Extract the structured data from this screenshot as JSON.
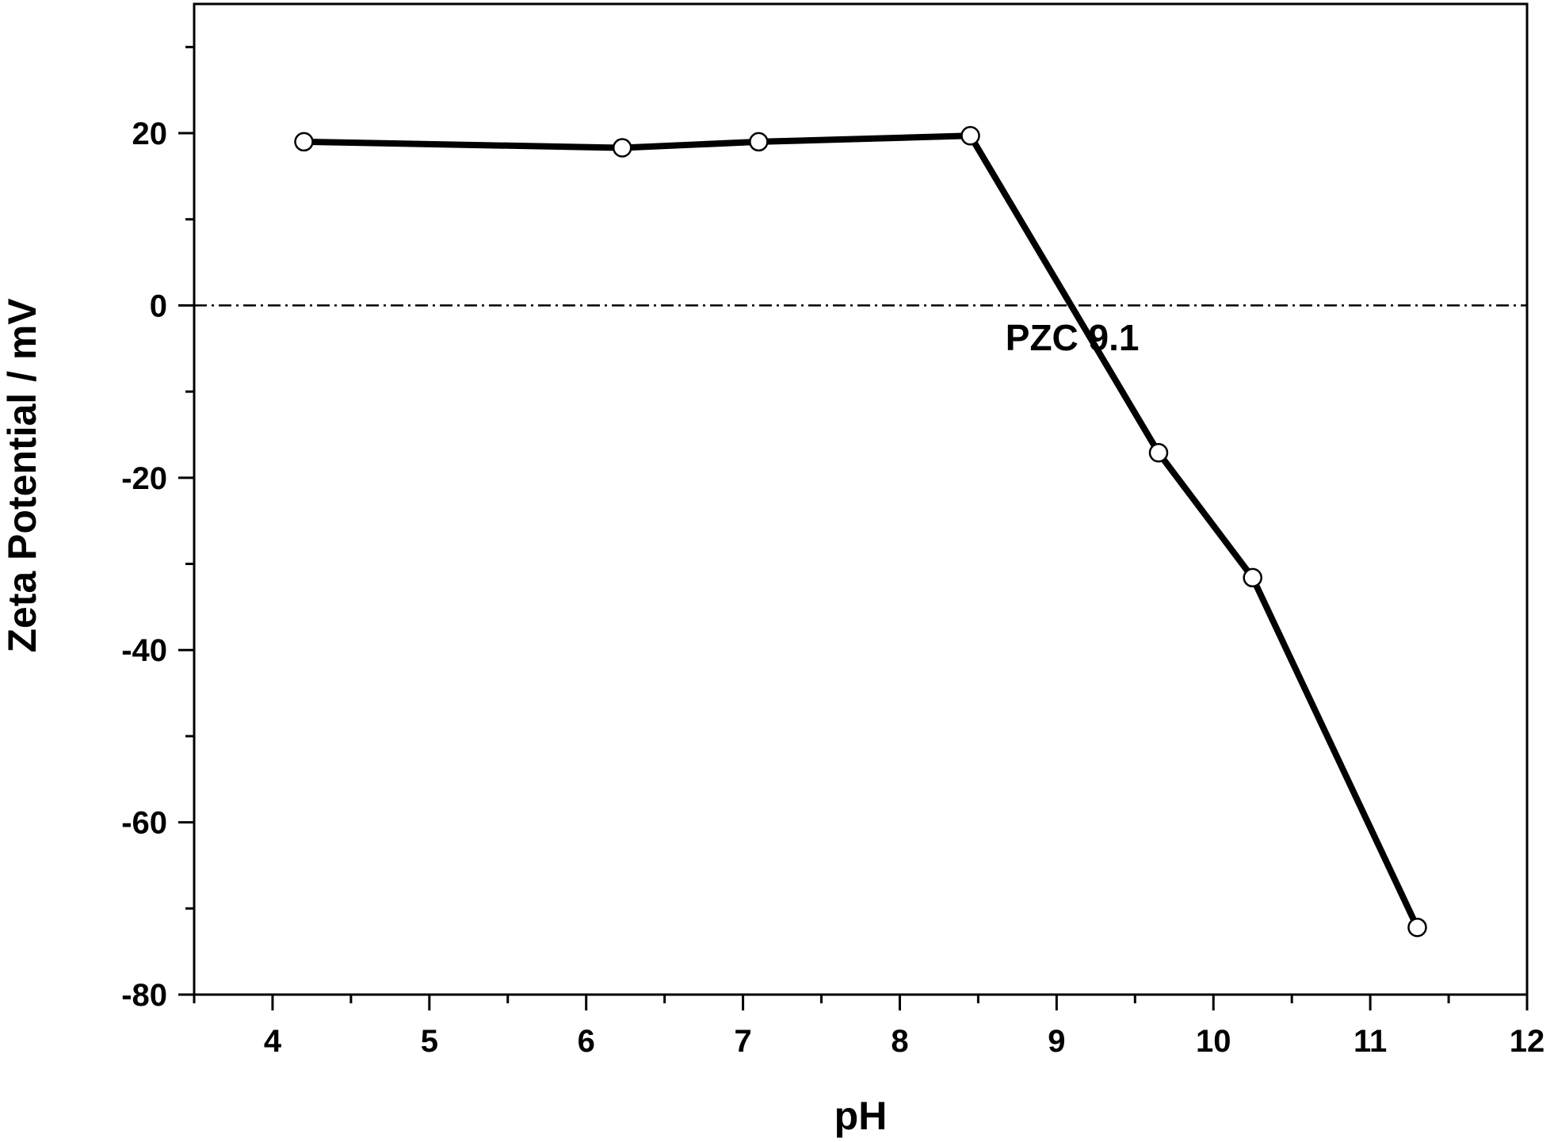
{
  "chart_data": {
    "type": "line",
    "xlabel": "pH",
    "ylabel": "Zeta Potential / mV",
    "xlim": [
      3.5,
      12
    ],
    "ylim": [
      -80,
      35
    ],
    "x_ticks": [
      4,
      5,
      6,
      7,
      8,
      9,
      10,
      11,
      12
    ],
    "y_ticks": [
      -80,
      -60,
      -40,
      -20,
      0,
      20
    ],
    "x_minor_ticks": [
      3.5,
      4.5,
      5.5,
      6.5,
      7.5,
      8.5,
      9.5,
      10.5,
      11.5
    ],
    "y_minor_ticks": [
      -70,
      -50,
      -30,
      -10,
      10,
      30
    ],
    "grid": false,
    "series": [
      {
        "marker": "open-circle",
        "color": "#000000",
        "points": [
          {
            "x": 4.2,
            "y": 19.0
          },
          {
            "x": 6.23,
            "y": 18.3
          },
          {
            "x": 7.1,
            "y": 19.0
          },
          {
            "x": 8.45,
            "y": 19.7
          },
          {
            "x": 9.65,
            "y": -17.1
          },
          {
            "x": 10.25,
            "y": -31.6
          },
          {
            "x": 11.3,
            "y": -72.2
          }
        ]
      }
    ],
    "reference_line": {
      "y": 0,
      "style": "dash-dot"
    },
    "annotations": [
      {
        "text": "PZC 9.1",
        "x": 9.1,
        "y": -5.2
      }
    ]
  }
}
